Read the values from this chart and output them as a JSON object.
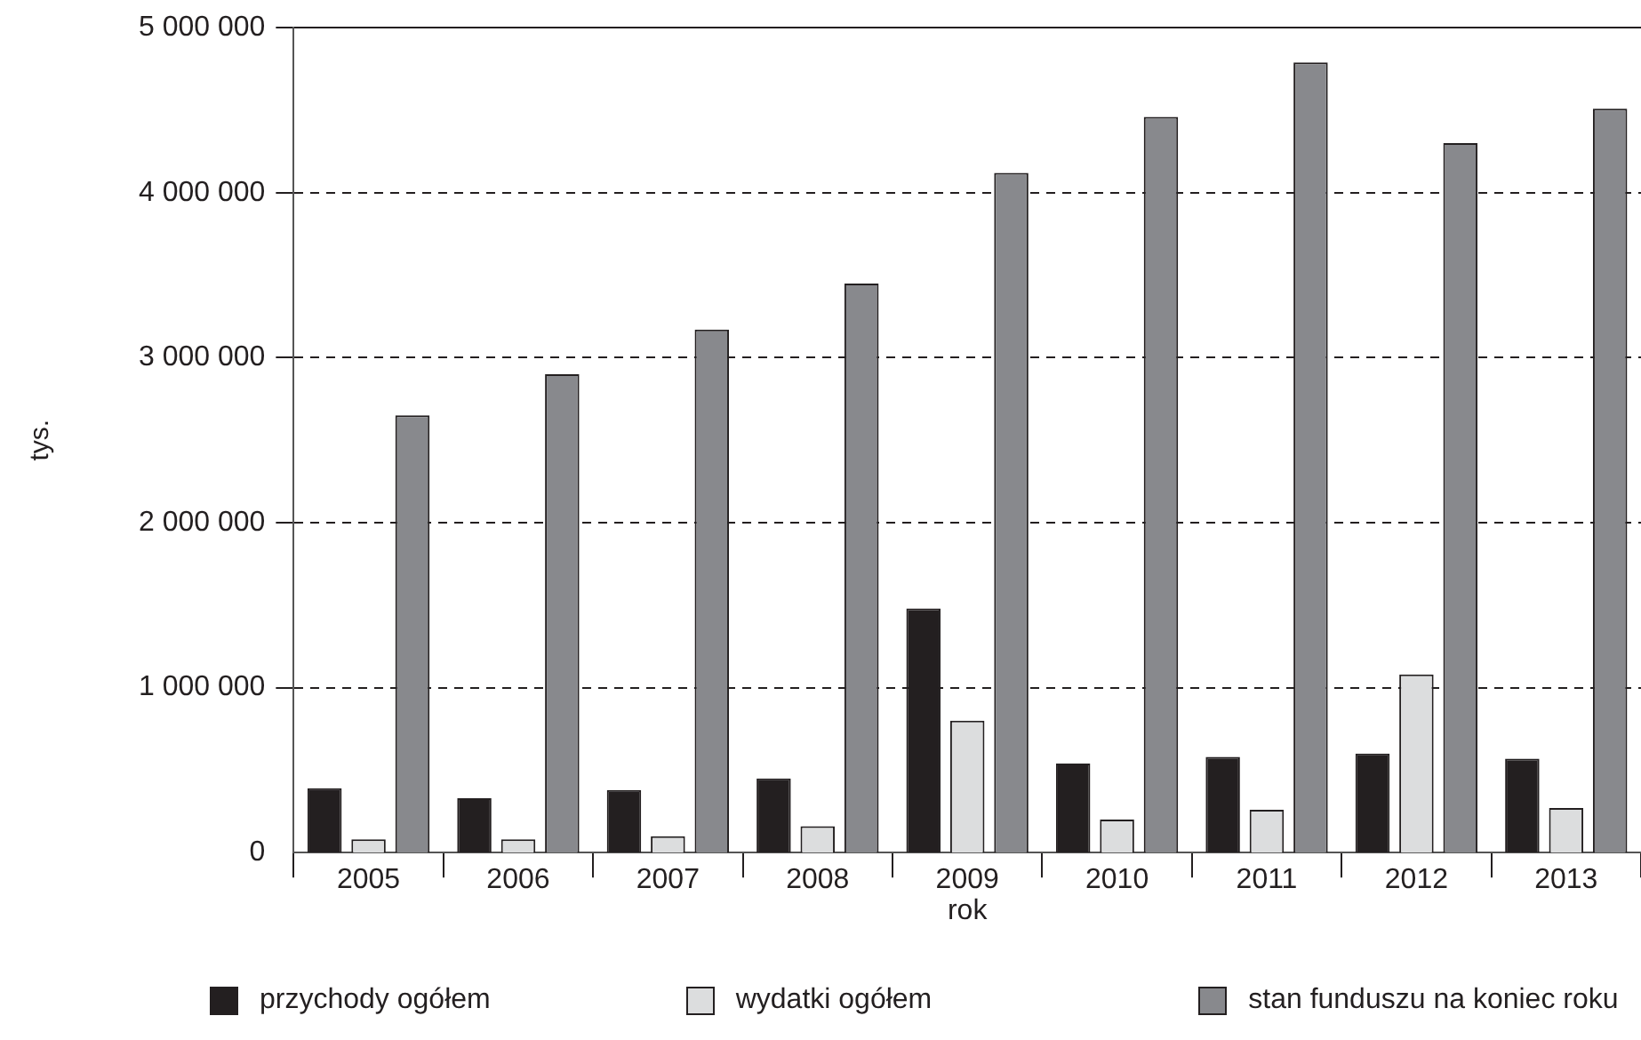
{
  "chart_data": {
    "type": "bar",
    "xlabel": "rok",
    "ylabel": "tys.",
    "categories": [
      "2005",
      "2006",
      "2007",
      "2008",
      "2009",
      "2010",
      "2011",
      "2012",
      "2013"
    ],
    "series": [
      {
        "name": "przychody ogółem",
        "color": "#231f20",
        "values": [
          390000,
          330000,
          380000,
          450000,
          1480000,
          540000,
          580000,
          600000,
          570000
        ]
      },
      {
        "name": "wydatki ogółem",
        "color": "#dcddde",
        "values": [
          80000,
          80000,
          100000,
          160000,
          800000,
          200000,
          260000,
          1080000,
          270000
        ]
      },
      {
        "name": "stan funduszu na koniec roku",
        "color": "#88898d",
        "values": [
          2650000,
          2900000,
          3170000,
          3450000,
          4120000,
          4460000,
          4790000,
          4300000,
          4510000
        ]
      }
    ],
    "ylim": [
      0,
      5000000
    ],
    "yticks": [
      {
        "value": 0,
        "label": "0"
      },
      {
        "value": 1000000,
        "label": "1 000 000"
      },
      {
        "value": 2000000,
        "label": "2 000 000"
      },
      {
        "value": 3000000,
        "label": "3 000 000"
      },
      {
        "value": 4000000,
        "label": "4 000 000"
      },
      {
        "value": 5000000,
        "label": "5 000 000"
      }
    ],
    "grid": "y",
    "legend": "bottom"
  }
}
